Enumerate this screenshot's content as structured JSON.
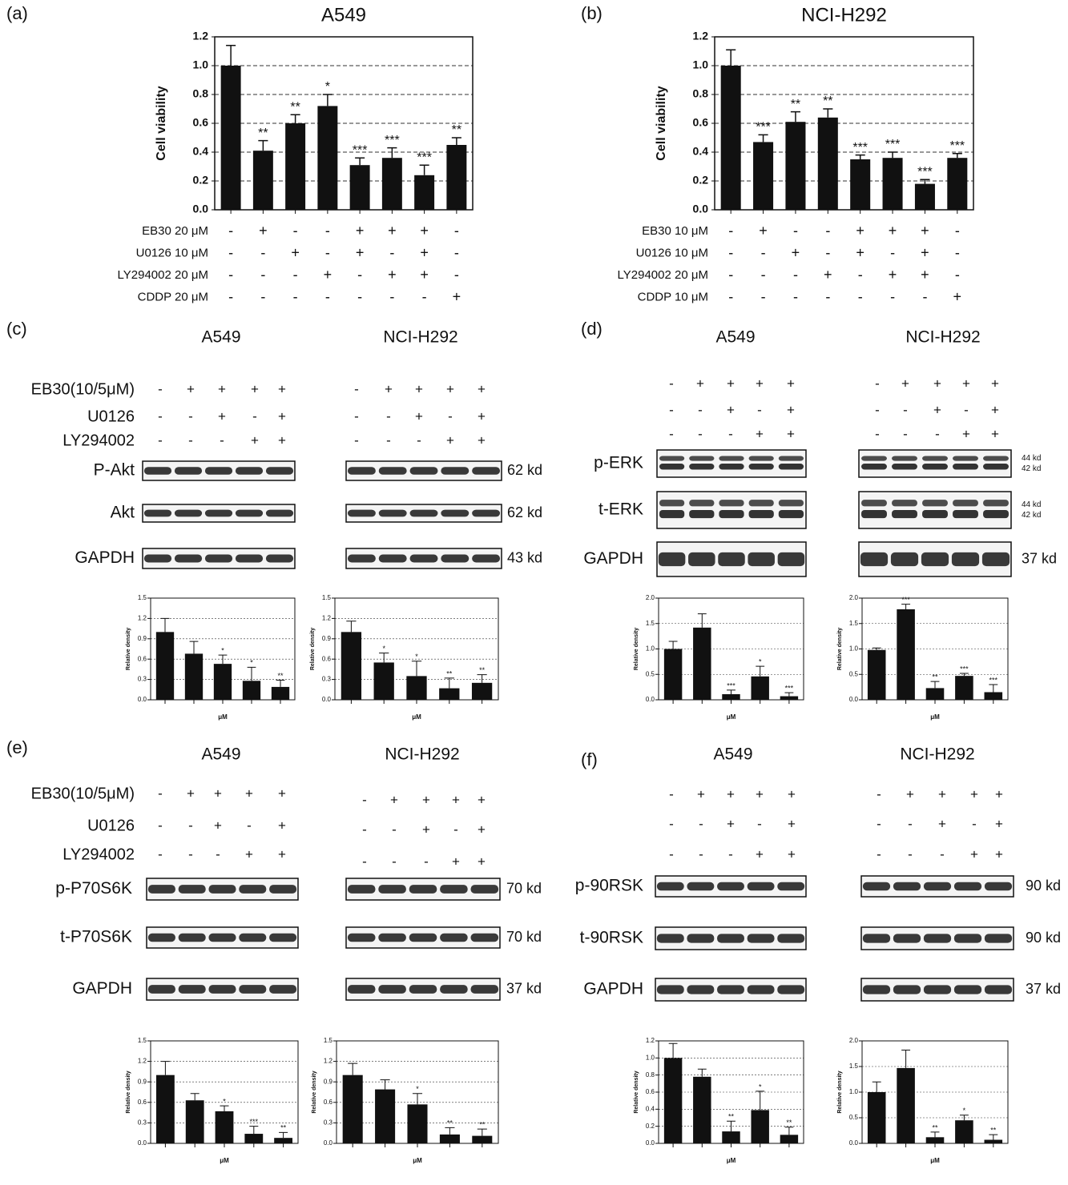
{
  "panel_labels": [
    "(a)",
    "(b)",
    "(c)",
    "(d)",
    "(e)",
    "(f)"
  ],
  "chart_data": [
    {
      "type": "bar",
      "title": "A549",
      "ylabel": "Cell viability",
      "categories": [
        null,
        null,
        null,
        null,
        null,
        null,
        null,
        null
      ],
      "values": [
        1.0,
        0.41,
        0.6,
        0.72,
        0.31,
        0.36,
        0.24,
        0.45
      ],
      "errors": [
        0.14,
        0.07,
        0.06,
        0.08,
        0.05,
        0.07,
        0.07,
        0.05
      ],
      "value_labels": [
        null,
        "**",
        "**",
        "*",
        "***",
        "***",
        "***",
        "**"
      ],
      "ylim": [
        0,
        1.2
      ],
      "yticks": [
        {
          "value": 0,
          "label": "0.0"
        },
        0.2,
        0.4,
        0.6,
        0.8,
        {
          "value": 1,
          "label": "1.0"
        },
        1.2
      ],
      "grid": true,
      "color": "#111111",
      "treatments": [
        {
          "name": "EB30 20 μM",
          "signs": [
            "-",
            "+",
            "-",
            "-",
            "+",
            "+",
            "+",
            "-"
          ]
        },
        {
          "name": "U0126 10 μM",
          "signs": [
            "-",
            "-",
            "+",
            "-",
            "+",
            "-",
            "+",
            "-"
          ]
        },
        {
          "name": "LY294002 20 μM",
          "signs": [
            "-",
            "-",
            "-",
            "+",
            "-",
            "+",
            "+",
            "-"
          ]
        },
        {
          "name": "CDDP 20 μM",
          "signs": [
            "-",
            "-",
            "-",
            "-",
            "-",
            "-",
            "-",
            "+"
          ]
        }
      ]
    },
    {
      "type": "bar",
      "title": "NCI-H292",
      "ylabel": "Cell viability",
      "categories": [
        null,
        null,
        null,
        null,
        null,
        null,
        null,
        null
      ],
      "values": [
        1.0,
        0.47,
        0.61,
        0.64,
        0.35,
        0.36,
        0.18,
        0.36
      ],
      "errors": [
        0.11,
        0.05,
        0.07,
        0.06,
        0.03,
        0.04,
        0.03,
        0.03
      ],
      "value_labels": [
        null,
        "***",
        "**",
        "**",
        "***",
        "***",
        "***",
        "***"
      ],
      "ylim": [
        0,
        1.2
      ],
      "yticks": [
        {
          "value": 0,
          "label": "0.0"
        },
        0.2,
        0.4,
        0.6,
        0.8,
        {
          "value": 1,
          "label": "1.0"
        },
        1.2
      ],
      "grid": true,
      "color": "#111111",
      "treatments": [
        {
          "name": "EB30 10 μM",
          "signs": [
            "-",
            "+",
            "-",
            "-",
            "+",
            "+",
            "+",
            "-"
          ]
        },
        {
          "name": "U0126 10 μM",
          "signs": [
            "-",
            "-",
            "+",
            "-",
            "+",
            "-",
            "+",
            "-"
          ]
        },
        {
          "name": "LY294002 20 μM",
          "signs": [
            "-",
            "-",
            "-",
            "+",
            "-",
            "+",
            "+",
            "-"
          ]
        },
        {
          "name": "CDDP 10 μM",
          "signs": [
            "-",
            "-",
            "-",
            "-",
            "-",
            "-",
            "-",
            "+"
          ]
        }
      ]
    },
    {
      "type": "bar",
      "ylabel": "Relative density",
      "xlabel": "μM",
      "categories": [
        null,
        null,
        null,
        null,
        null
      ],
      "values": [
        1.0,
        0.68,
        0.53,
        0.28,
        0.19
      ],
      "errors": [
        0.2,
        0.18,
        0.13,
        0.2,
        0.1
      ],
      "value_labels": [
        null,
        null,
        "*",
        "*",
        "**"
      ],
      "ylim": [
        0,
        1.5
      ],
      "yticks": [
        {
          "value": 0,
          "label": "0.0"
        },
        0.3,
        0.6,
        0.9,
        1.2,
        1.5
      ],
      "grid": true,
      "color": "#111111"
    },
    {
      "type": "bar",
      "ylabel": "Relative density",
      "xlabel": "μM",
      "categories": [
        null,
        null,
        null,
        null,
        null
      ],
      "values": [
        1.0,
        0.55,
        0.35,
        0.17,
        0.25
      ],
      "errors": [
        0.16,
        0.14,
        0.22,
        0.15,
        0.12
      ],
      "value_labels": [
        null,
        "*",
        "*",
        "**",
        "**"
      ],
      "ylim": [
        0,
        1.5
      ],
      "yticks": [
        {
          "value": 0,
          "label": "0.0"
        },
        0.3,
        0.6,
        0.9,
        1.2,
        1.5
      ],
      "grid": true,
      "color": "#111111"
    },
    {
      "type": "bar",
      "ylabel": "Relative density",
      "xlabel": "μM",
      "categories": [
        null,
        null,
        null,
        null,
        null
      ],
      "values": [
        1.0,
        1.42,
        0.11,
        0.46,
        0.07
      ],
      "errors": [
        0.15,
        0.27,
        0.08,
        0.2,
        0.07
      ],
      "value_labels": [
        null,
        null,
        "***",
        "*",
        "***"
      ],
      "ylim": [
        0,
        2
      ],
      "yticks": [
        {
          "value": 0,
          "label": "0.0"
        },
        0.5,
        {
          "value": 1,
          "label": "1.0"
        },
        1.5,
        {
          "value": 2,
          "label": "2.0"
        }
      ],
      "grid": true,
      "color": "#111111"
    },
    {
      "type": "bar",
      "ylabel": "Relative density",
      "xlabel": "μM",
      "categories": [
        null,
        null,
        null,
        null,
        null
      ],
      "values": [
        0.98,
        1.78,
        0.23,
        0.47,
        0.15
      ],
      "errors": [
        0.04,
        0.1,
        0.13,
        0.05,
        0.15
      ],
      "value_labels": [
        null,
        "***",
        "**",
        "***",
        "***"
      ],
      "ylim": [
        0,
        2
      ],
      "yticks": [
        {
          "value": 0,
          "label": "0.0"
        },
        0.5,
        {
          "value": 1,
          "label": "1.0"
        },
        1.5,
        {
          "value": 2,
          "label": "2.0"
        }
      ],
      "grid": true,
      "color": "#111111"
    },
    {
      "type": "bar",
      "ylabel": "Relative density",
      "xlabel": "μM",
      "categories": [
        null,
        null,
        null,
        null,
        null
      ],
      "values": [
        1.0,
        0.63,
        0.47,
        0.14,
        0.08
      ],
      "errors": [
        0.2,
        0.1,
        0.08,
        0.11,
        0.08
      ],
      "value_labels": [
        null,
        null,
        "*",
        "***",
        "**"
      ],
      "ylim": [
        0,
        1.5
      ],
      "yticks": [
        {
          "value": 0,
          "label": "0.0"
        },
        0.3,
        0.6,
        0.9,
        1.2,
        1.5
      ],
      "grid": true,
      "color": "#111111"
    },
    {
      "type": "bar",
      "ylabel": "Relative density",
      "xlabel": "μM",
      "categories": [
        null,
        null,
        null,
        null,
        null
      ],
      "values": [
        1.0,
        0.79,
        0.57,
        0.13,
        0.11
      ],
      "errors": [
        0.17,
        0.14,
        0.16,
        0.1,
        0.1
      ],
      "value_labels": [
        null,
        null,
        "*",
        "**",
        "**"
      ],
      "ylim": [
        0,
        1.5
      ],
      "yticks": [
        {
          "value": 0,
          "label": "0.0"
        },
        0.3,
        0.6,
        0.9,
        1.2,
        1.5
      ],
      "grid": true,
      "color": "#111111"
    },
    {
      "type": "bar",
      "ylabel": "Relative density",
      "xlabel": "μM",
      "categories": [
        null,
        null,
        null,
        null,
        null
      ],
      "values": [
        1.0,
        0.78,
        0.14,
        0.39,
        0.1
      ],
      "errors": [
        0.17,
        0.09,
        0.12,
        0.22,
        0.09
      ],
      "value_labels": [
        null,
        null,
        "**",
        "*",
        "**"
      ],
      "ylim": [
        0,
        1.2
      ],
      "yticks": [
        {
          "value": 0,
          "label": "0.0"
        },
        0.2,
        0.4,
        0.6,
        0.8,
        {
          "value": 1,
          "label": "1.0"
        },
        1.2
      ],
      "grid": true,
      "color": "#111111"
    },
    {
      "type": "bar",
      "ylabel": "Relative density",
      "xlabel": "μM",
      "categories": [
        null,
        null,
        null,
        null,
        null
      ],
      "values": [
        1.0,
        1.47,
        0.12,
        0.45,
        0.07
      ],
      "errors": [
        0.2,
        0.35,
        0.1,
        0.1,
        0.1
      ],
      "value_labels": [
        null,
        null,
        "**",
        "*",
        "**"
      ],
      "ylim": [
        0,
        2
      ],
      "yticks": [
        {
          "value": 0,
          "label": "0.0"
        },
        0.5,
        {
          "value": 1,
          "label": "1.0"
        },
        1.5,
        {
          "value": 2,
          "label": "2.0"
        }
      ],
      "grid": true,
      "color": "#111111"
    }
  ],
  "blots": [
    {
      "titles": [
        "A549",
        "NCI-H292"
      ],
      "treatments": [
        "EB30(10/5μM)",
        "U0126",
        "LY294002"
      ],
      "signs": [
        [
          "-",
          "+",
          "+",
          "+",
          "+"
        ],
        [
          "-",
          "-",
          "+",
          "-",
          "+"
        ],
        [
          "-",
          "-",
          "-",
          "+",
          "+"
        ]
      ],
      "bands": [
        "P-Akt",
        "Akt",
        "GAPDH"
      ],
      "kd": [
        [
          "62 kd"
        ],
        [
          "62 kd"
        ],
        [
          "43 kd"
        ]
      ]
    },
    {
      "titles": [
        "A549",
        "NCI-H292"
      ],
      "signs": [
        [
          "-",
          "+",
          "+",
          "+",
          "+"
        ],
        [
          "-",
          "-",
          "+",
          "-",
          "+"
        ],
        [
          "-",
          "-",
          "-",
          "+",
          "+"
        ]
      ],
      "bands": [
        "p-ERK",
        "t-ERK",
        "GAPDH"
      ],
      "kd": [
        [
          "44 kd",
          "42 kd"
        ],
        [
          "44 kd",
          "42 kd"
        ],
        [
          "37 kd"
        ]
      ]
    },
    {
      "titles": [
        "A549",
        "NCI-H292"
      ],
      "treatments": [
        "EB30(10/5μM)",
        "U0126",
        "LY294002"
      ],
      "signs": [
        [
          "-",
          "+",
          "+",
          "+",
          "+"
        ],
        [
          "-",
          "-",
          "+",
          "-",
          "+"
        ],
        [
          "-",
          "-",
          "-",
          "+",
          "+"
        ]
      ],
      "bands": [
        "p-P70S6K",
        "t-P70S6K",
        "GAPDH"
      ],
      "kd": [
        [
          "70 kd"
        ],
        [
          "70 kd"
        ],
        [
          "37 kd"
        ]
      ]
    },
    {
      "titles": [
        "A549",
        "NCI-H292"
      ],
      "signs": [
        [
          "-",
          "+",
          "+",
          "+",
          "+"
        ],
        [
          "-",
          "-",
          "+",
          "-",
          "+"
        ],
        [
          "-",
          "-",
          "-",
          "+",
          "+"
        ]
      ],
      "bands": [
        "p-90RSK",
        "t-90RSK",
        "GAPDH"
      ],
      "kd": [
        [
          "90 kd"
        ],
        [
          "90 kd"
        ],
        [
          "37 kd"
        ]
      ]
    }
  ]
}
